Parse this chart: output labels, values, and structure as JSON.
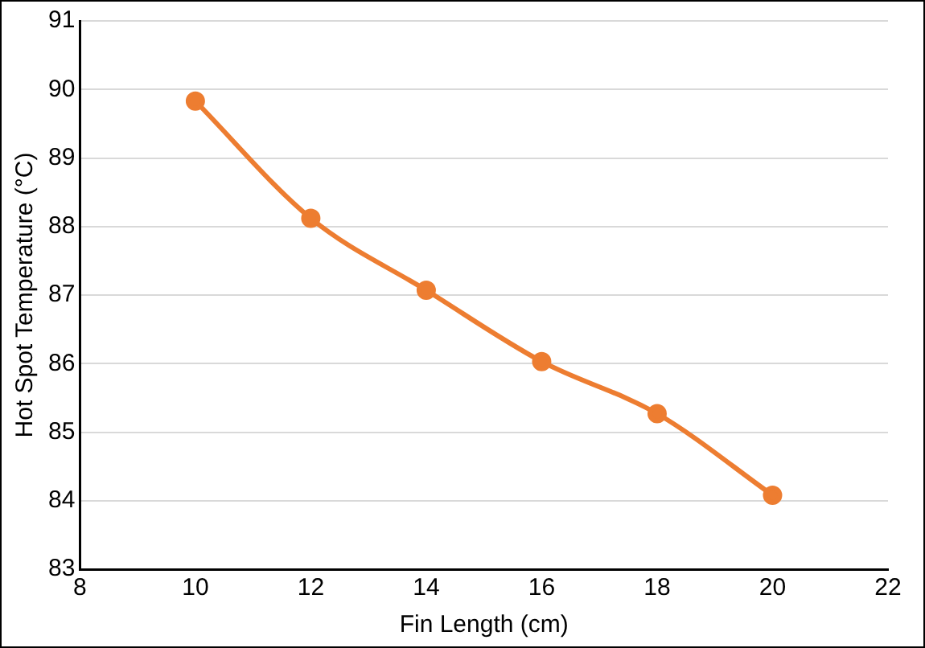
{
  "chart_data": {
    "type": "line",
    "xlabel": "Fin Length (cm)",
    "ylabel": "Hot Spot Temperature (°C)",
    "x": [
      10,
      12,
      14,
      16,
      18,
      20
    ],
    "series": [
      {
        "color": "#ed7d31",
        "values": [
          89.83,
          88.12,
          87.07,
          86.03,
          85.27,
          84.08
        ]
      }
    ],
    "xlim": [
      8,
      22
    ],
    "xticks": [
      8,
      10,
      12,
      14,
      16,
      18,
      20,
      22
    ],
    "ylim": [
      83,
      91
    ],
    "yticks": [
      83,
      84,
      85,
      86,
      87,
      88,
      89,
      90,
      91
    ],
    "grid": "y",
    "legend": false,
    "marker": "circle",
    "line_style": "solid"
  }
}
